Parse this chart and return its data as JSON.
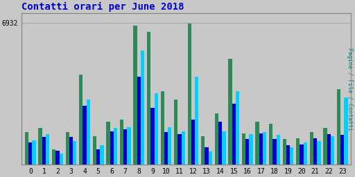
{
  "title": "Contatti orari per June 2018",
  "title_color": "#0000CC",
  "title_fontsize": 10,
  "ylabel_right": "Pagine / File / Contatti",
  "ylabel_right_color": "#008080",
  "hours": [
    0,
    1,
    2,
    3,
    4,
    5,
    6,
    7,
    8,
    9,
    10,
    11,
    12,
    13,
    14,
    15,
    16,
    17,
    18,
    19,
    20,
    21,
    22,
    23
  ],
  "ytick_label": "6932",
  "ytick_value": 6932,
  "pagine": [
    1600,
    1800,
    750,
    1600,
    4400,
    1400,
    2100,
    2200,
    6800,
    6500,
    3600,
    3200,
    6900,
    1400,
    2500,
    5200,
    1550,
    2100,
    2000,
    1250,
    1300,
    1600,
    1800,
    3700
  ],
  "file": [
    1100,
    1350,
    700,
    1350,
    2900,
    750,
    1650,
    1750,
    4300,
    2800,
    1600,
    1500,
    2200,
    850,
    2100,
    3000,
    1250,
    1550,
    1250,
    950,
    1000,
    1300,
    1500,
    1450
  ],
  "contatti": [
    1200,
    1500,
    550,
    1150,
    3200,
    950,
    1800,
    1850,
    5600,
    3500,
    1850,
    1650,
    4300,
    650,
    1650,
    3600,
    1500,
    1600,
    1450,
    850,
    1100,
    1150,
    1400,
    3300
  ],
  "color_pagine": "#2E8B57",
  "color_file": "#0000CD",
  "color_contatti": "#00CFFF",
  "bg_color": "#C8C8C8",
  "plot_bg_color": "#C8C8C8",
  "bar_width": 0.27,
  "ylim": [
    0,
    7400
  ],
  "grid_color": "#AAAAAA",
  "font_family": "monospace"
}
